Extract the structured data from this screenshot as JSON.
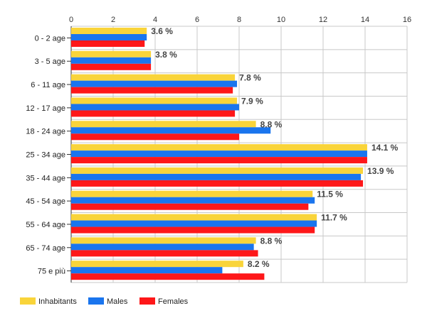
{
  "chart_data": {
    "type": "bar",
    "orientation": "horizontal",
    "categories": [
      "0 - 2 age",
      "3 - 5 age",
      "6 - 11 age",
      "12 - 17 age",
      "18 - 24 age",
      "25 - 34 age",
      "35 - 44 age",
      "45 - 54 age",
      "55 - 64 age",
      "65 - 74 age",
      "75 e più"
    ],
    "series": [
      {
        "name": "Inhabitants",
        "color": "#f9d43a",
        "values": [
          3.6,
          3.8,
          7.8,
          7.9,
          8.8,
          14.1,
          13.9,
          11.5,
          11.7,
          8.8,
          8.2
        ]
      },
      {
        "name": "Males",
        "color": "#1a75ee",
        "values": [
          3.6,
          3.8,
          7.9,
          8.0,
          9.5,
          14.1,
          13.8,
          11.6,
          11.7,
          8.7,
          7.2
        ]
      },
      {
        "name": "Females",
        "color": "#fe1719",
        "values": [
          3.5,
          3.8,
          7.7,
          7.8,
          8.0,
          14.1,
          13.9,
          11.3,
          11.6,
          8.9,
          9.2
        ]
      }
    ],
    "data_labels": [
      "3.6 %",
      "3.8 %",
      "7.8 %",
      "7.9 %",
      "8.8 %",
      "14.1 %",
      "13.9 %",
      "11.5 %",
      "11.7 %",
      "8.8 %",
      "8.2 %"
    ],
    "xticks": [
      "0",
      "2",
      "4",
      "6",
      "8",
      "10",
      "12",
      "14",
      "16"
    ],
    "xlim": [
      0,
      16
    ],
    "grid": true,
    "legend_position": "bottom-left",
    "title": "",
    "xlabel": "",
    "ylabel": ""
  }
}
